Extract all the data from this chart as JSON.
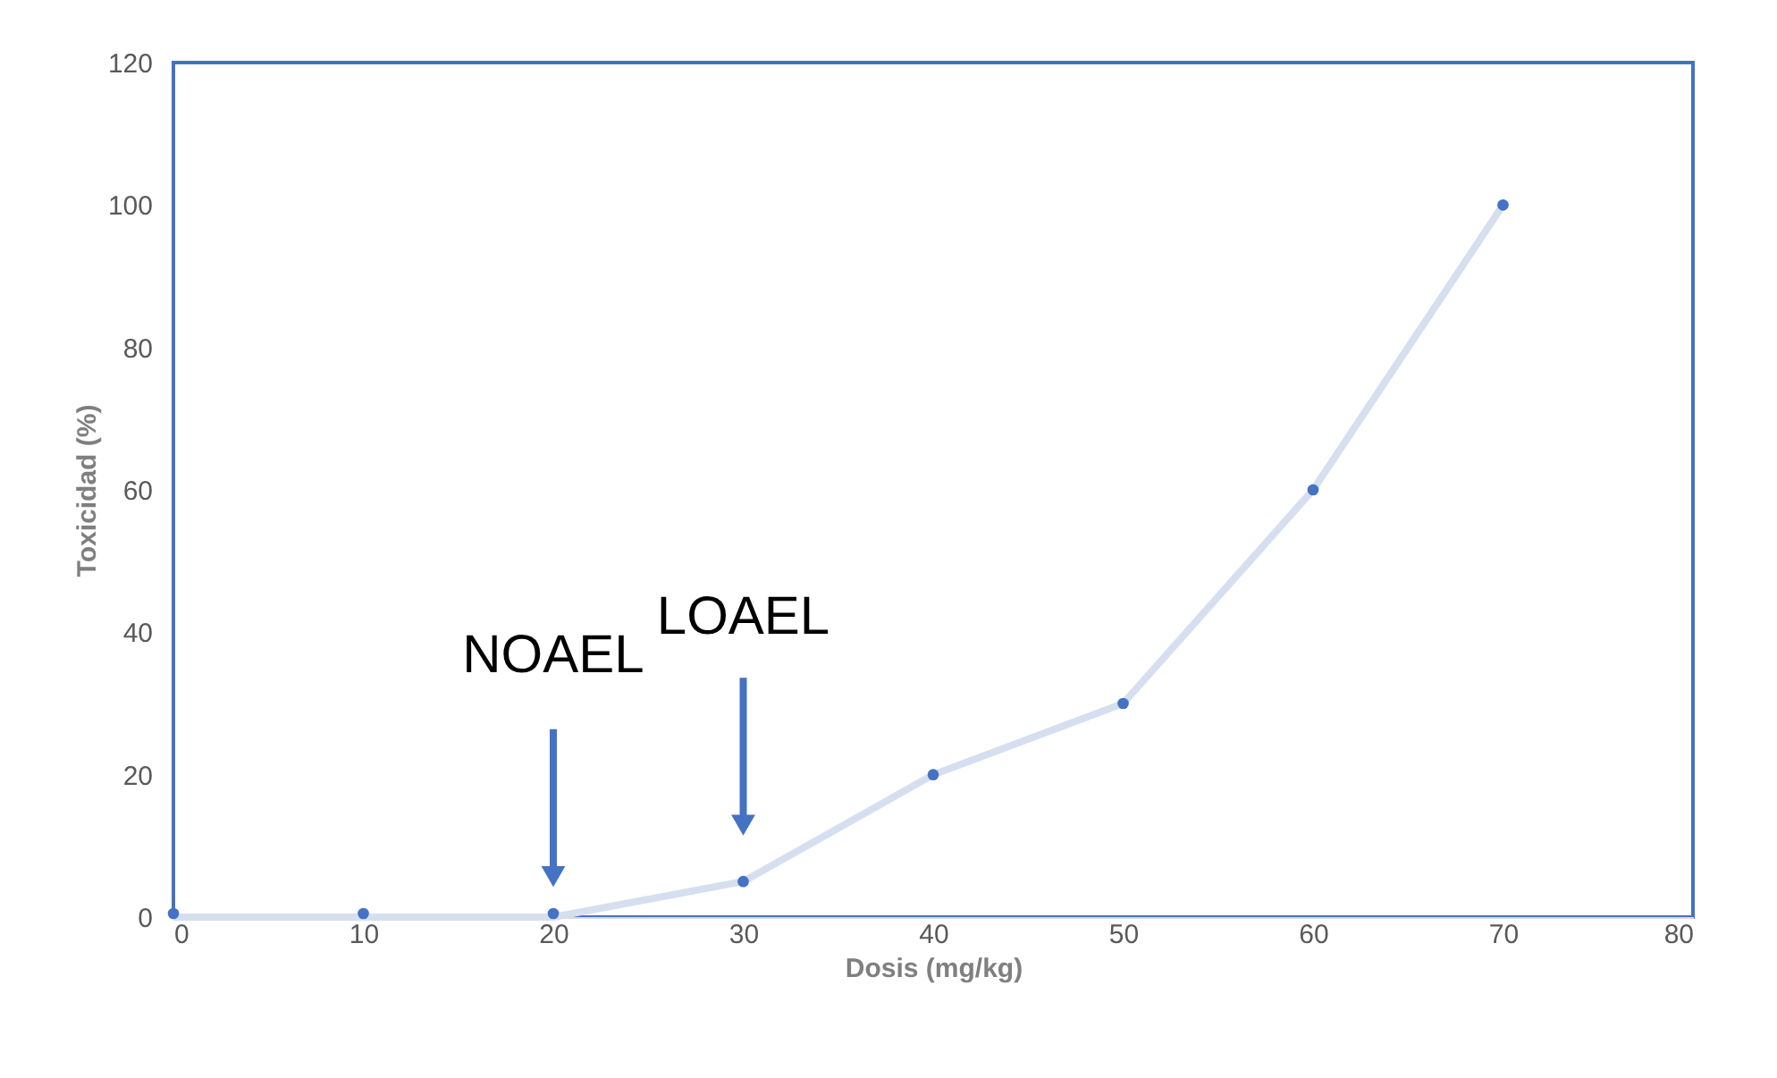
{
  "chart_data": {
    "type": "line",
    "xlabel": "Dosis (mg/kg)",
    "ylabel": "Toxicidad (%)",
    "x": [
      0,
      10,
      20,
      30,
      40,
      50,
      60,
      70
    ],
    "series": [
      {
        "color": "#d5dff0",
        "values": [
          0,
          0,
          0,
          5,
          20,
          30,
          60,
          100
        ],
        "marker": "none"
      },
      {
        "type": "scatter",
        "color": "#4472c4",
        "values": [
          0.5,
          0.5,
          0.5,
          5,
          20,
          30,
          60,
          100
        ],
        "marker": "circle"
      }
    ],
    "annotations": [
      "NOAEL",
      "LOAEL"
    ],
    "xlim": [
      0,
      80
    ],
    "xticks": [
      0,
      10,
      20,
      30,
      40,
      50,
      60,
      70,
      80
    ],
    "ylim": [
      0,
      120
    ],
    "yticks": [
      0,
      20,
      40,
      60,
      80,
      100,
      120
    ],
    "grid": false
  }
}
